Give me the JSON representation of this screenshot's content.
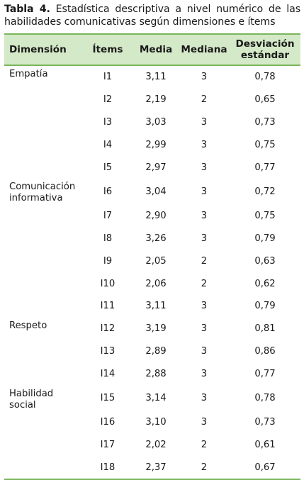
{
  "caption": {
    "label": "Tabla 4.",
    "text": " Estadística descriptiva a nivel numérico de las habilidades comunicativas según dimensiones e ítems"
  },
  "table": {
    "headers": {
      "dimension": "Dimensión",
      "items": "Ítems",
      "media": "Media",
      "mediana": "Mediana",
      "desv_line1": "Desviación",
      "desv_line2": "estándar"
    },
    "rows": [
      {
        "dim1": "Empatía",
        "dim2": "",
        "item": "I1",
        "media": "3,11",
        "mediana": "3",
        "desv": "0,78"
      },
      {
        "dim1": "",
        "dim2": "",
        "item": "I2",
        "media": "2,19",
        "mediana": "2",
        "desv": "0,65"
      },
      {
        "dim1": "",
        "dim2": "",
        "item": "I3",
        "media": "3,03",
        "mediana": "3",
        "desv": "0,73"
      },
      {
        "dim1": "",
        "dim2": "",
        "item": "I4",
        "media": "2,99",
        "mediana": "3",
        "desv": "0,75"
      },
      {
        "dim1": "",
        "dim2": "",
        "item": "I5",
        "media": "2,97",
        "mediana": "3",
        "desv": "0,77"
      },
      {
        "dim1": "Comunicación",
        "dim2": "informativa",
        "item": "I6",
        "media": "3,04",
        "mediana": "3",
        "desv": "0,72"
      },
      {
        "dim1": "",
        "dim2": "",
        "item": "I7",
        "media": "2,90",
        "mediana": "3",
        "desv": "0,75"
      },
      {
        "dim1": "",
        "dim2": "",
        "item": "I8",
        "media": "3,26",
        "mediana": "3",
        "desv": "0,79"
      },
      {
        "dim1": "",
        "dim2": "",
        "item": "I9",
        "media": "2,05",
        "mediana": "2",
        "desv": "0,63"
      },
      {
        "dim1": "",
        "dim2": "",
        "item": "I10",
        "media": "2,06",
        "mediana": "2",
        "desv": "0,62"
      },
      {
        "dim1": "",
        "dim2": "",
        "item": "I11",
        "media": "3,11",
        "mediana": "3",
        "desv": "0,79"
      },
      {
        "dim1": "Respeto",
        "dim2": "",
        "item": "I12",
        "media": "3,19",
        "mediana": "3",
        "desv": "0,81"
      },
      {
        "dim1": "",
        "dim2": "",
        "item": "I13",
        "media": "2,89",
        "mediana": "3",
        "desv": "0,86"
      },
      {
        "dim1": "",
        "dim2": "",
        "item": "I14",
        "media": "2,88",
        "mediana": "3",
        "desv": "0,77"
      },
      {
        "dim1": "Habilidad",
        "dim2": "social",
        "item": "I15",
        "media": "3,14",
        "mediana": "3",
        "desv": "0,78"
      },
      {
        "dim1": "",
        "dim2": "",
        "item": "I16",
        "media": "3,10",
        "mediana": "3",
        "desv": "0,73"
      },
      {
        "dim1": "",
        "dim2": "",
        "item": "I17",
        "media": "2,02",
        "mediana": "2",
        "desv": "0,61"
      },
      {
        "dim1": "",
        "dim2": "",
        "item": "I18",
        "media": "2,37",
        "mediana": "2",
        "desv": "0,67"
      }
    ],
    "colors": {
      "header_bg": "#d4e9c7",
      "rule": "#7ab55c"
    }
  }
}
